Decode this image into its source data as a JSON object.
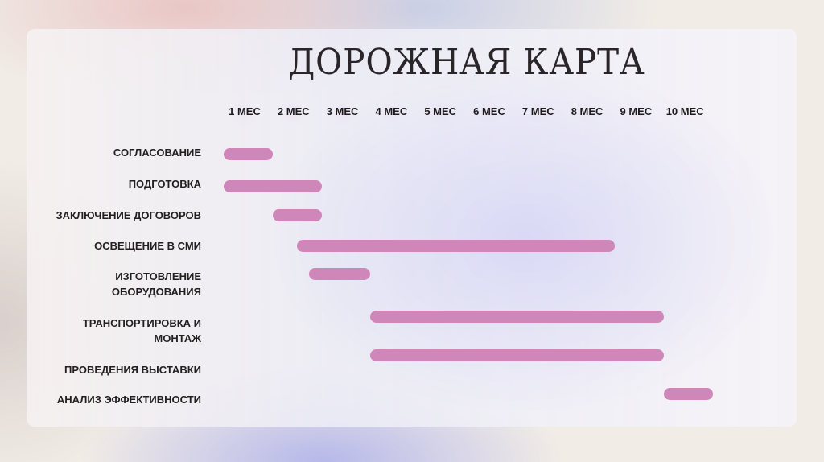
{
  "title": "ДОРОЖНАЯ КАРТА",
  "chart_data": {
    "type": "gantt",
    "title": "ДОРОЖНАЯ КАРТА",
    "months": [
      "1 МЕС",
      "2 МЕС",
      "3 МЕС",
      "4 МЕС",
      "5 МЕС",
      "6 МЕС",
      "7 МЕС",
      "8 МЕС",
      "9 МЕС",
      "10 МЕС"
    ],
    "bar_color": "#cf86b8",
    "tasks": [
      {
        "label": "СОГЛАСОВАНИЕ",
        "start": 0,
        "end": 1
      },
      {
        "label": "ПОДГОТОВКА",
        "start": 0,
        "end": 2
      },
      {
        "label": "ЗАКЛЮЧЕНИЕ ДОГОВОРОВ",
        "start": 1,
        "end": 2
      },
      {
        "label": "ОСВЕЩЕНИЕ В СМИ",
        "start": 1.5,
        "end": 8
      },
      {
        "label": "ИЗГОТОВЛЕНИЕ\nОБОРУДОВАНИЯ",
        "start": 1.75,
        "end": 3
      },
      {
        "label": "ТРАНСПОРТИРОВКА И\nМОНТАЖ",
        "start": 3,
        "end": 9
      },
      {
        "label": "ПРОВЕДЕНИЯ ВЫСТАВКИ",
        "start": 3,
        "end": 9
      },
      {
        "label": "АНАЛИЗ ЭФФЕКТИВНОСТИ",
        "start": 9,
        "end": 10
      }
    ]
  }
}
